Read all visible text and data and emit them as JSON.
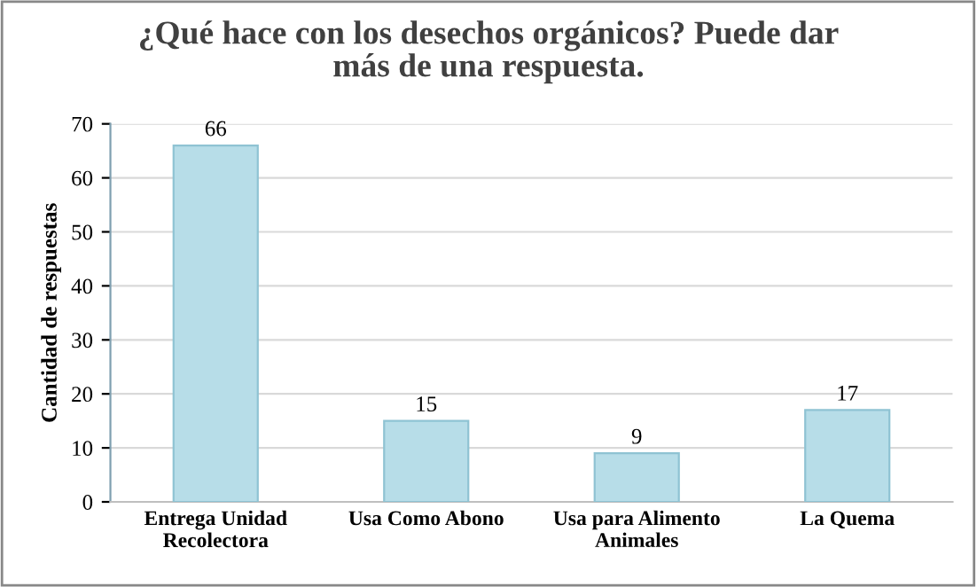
{
  "chart_data": {
    "type": "bar",
    "title": "¿Qué hace con los desechos orgánicos? Puede dar\nmás de una respuesta.",
    "ylabel": "Cantidad de respuestas",
    "categories": [
      "Entrega Unidad\nRecolectora",
      "Usa Como Abono",
      "Usa para Alimento\nAnimales",
      "La Quema"
    ],
    "values": [
      66,
      15,
      9,
      17
    ],
    "color": "#b7dde8",
    "ylim": [
      0,
      70
    ],
    "yticks": [
      0,
      10,
      20,
      30,
      40,
      50,
      60,
      70
    ],
    "grid": "y",
    "data_labels": true
  }
}
